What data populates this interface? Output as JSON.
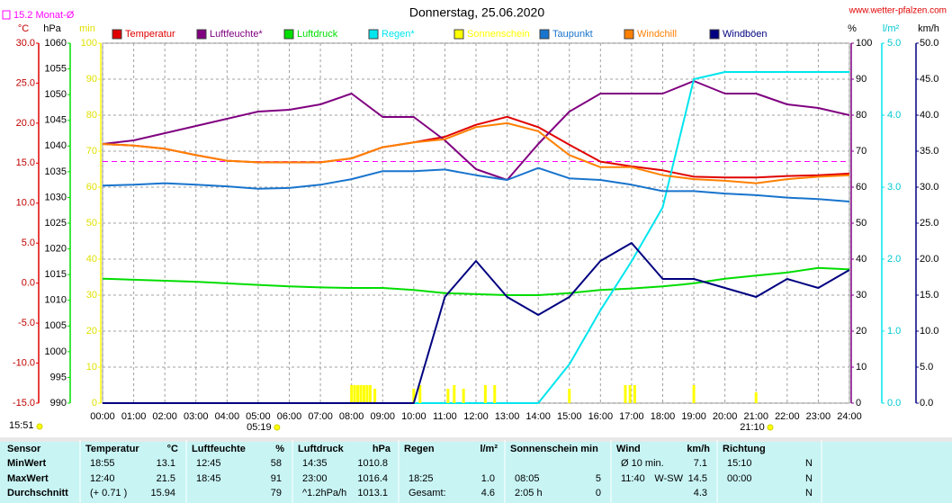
{
  "chart_data": {
    "type": "line",
    "title": "Donnerstag, 25.06.2020",
    "site": "www.wetter-pfalzen.com",
    "current_time": "15:51",
    "sunrise": {
      "label": "05:19",
      "x": 5.3167
    },
    "sunset": {
      "label": "21:10",
      "x": 21.1667
    },
    "monthly_avg": {
      "label": "15.2 Monat-Ø",
      "value": 15.2,
      "color": "#ff00ff"
    },
    "grid": true,
    "xlim": [
      0,
      24
    ],
    "xticks": [
      {
        "value": 0,
        "label": "00:00"
      },
      {
        "value": 1,
        "label": "01:00"
      },
      {
        "value": 2,
        "label": "02:00"
      },
      {
        "value": 3,
        "label": "03:00"
      },
      {
        "value": 4,
        "label": "04:00"
      },
      {
        "value": 5,
        "label": "05:00"
      },
      {
        "value": 6,
        "label": "06:00"
      },
      {
        "value": 7,
        "label": "07:00"
      },
      {
        "value": 8,
        "label": "08:00"
      },
      {
        "value": 9,
        "label": "09:00"
      },
      {
        "value": 10,
        "label": "10:00"
      },
      {
        "value": 11,
        "label": "11:00"
      },
      {
        "value": 12,
        "label": "12:00"
      },
      {
        "value": 13,
        "label": "13:00"
      },
      {
        "value": 14,
        "label": "14:00"
      },
      {
        "value": 15,
        "label": "15:00"
      },
      {
        "value": 16,
        "label": "16:00"
      },
      {
        "value": 17,
        "label": "17:00"
      },
      {
        "value": 18,
        "label": "18:00"
      },
      {
        "value": 19,
        "label": "19:00"
      },
      {
        "value": 20,
        "label": "20:00"
      },
      {
        "value": 21,
        "label": "21:00"
      },
      {
        "value": 22,
        "label": "22:00"
      },
      {
        "value": 23,
        "label": "23:00"
      },
      {
        "value": 24,
        "label": "24:00"
      }
    ],
    "axes": {
      "temp": {
        "label": "°C",
        "side": "left",
        "color": "#e00000",
        "tick_color": "#c00000",
        "lim": [
          -15,
          30
        ],
        "ticks": [
          {
            "value": -15,
            "label": "-15.0"
          },
          {
            "value": -10,
            "label": "-10.0"
          },
          {
            "value": -5,
            "label": "-5.0"
          },
          {
            "value": 0,
            "label": "0.0"
          },
          {
            "value": 5,
            "label": "5.0"
          },
          {
            "value": 10,
            "label": "10.0"
          },
          {
            "value": 15,
            "label": "15.0"
          },
          {
            "value": 20,
            "label": "20.0"
          },
          {
            "value": 25,
            "label": "25.0"
          },
          {
            "value": 30,
            "label": "30.0"
          }
        ]
      },
      "pressure": {
        "label": "hPa",
        "side": "left",
        "color": "#00dd00",
        "tick_color": "#000000",
        "lim": [
          990,
          1060
        ],
        "ticks": [
          990,
          995,
          1000,
          1005,
          1010,
          1015,
          1020,
          1025,
          1030,
          1035,
          1040,
          1045,
          1050,
          1055,
          1060
        ]
      },
      "sun": {
        "label": "min",
        "side": "left",
        "color": "#ffff00",
        "tick_color": "#e0e000",
        "lim": [
          0,
          100
        ],
        "ticks": [
          0,
          10,
          20,
          30,
          40,
          50,
          60,
          70,
          80,
          90,
          100
        ]
      },
      "pct": {
        "label": "%",
        "side": "right",
        "color": "#800080",
        "tick_color": "#000000",
        "lim": [
          0,
          100
        ],
        "ticks": [
          0,
          10,
          20,
          30,
          40,
          50,
          60,
          70,
          80,
          90,
          100
        ]
      },
      "rain": {
        "label": "l/m²",
        "side": "right",
        "color": "#00e5ee",
        "tick_color": "#00c8d0",
        "lim": [
          0,
          5
        ],
        "ticks": [
          {
            "value": 0,
            "label": "0.0"
          },
          {
            "value": 1,
            "label": "1.0"
          },
          {
            "value": 2,
            "label": "2.0"
          },
          {
            "value": 3,
            "label": "3.0"
          },
          {
            "value": 4,
            "label": "4.0"
          },
          {
            "value": 5,
            "label": "5.0"
          }
        ]
      },
      "wind": {
        "label": "km/h",
        "side": "right",
        "color": "#000080",
        "tick_color": "#000000",
        "lim": [
          0,
          50
        ],
        "ticks": [
          {
            "value": 0,
            "label": "0.0"
          },
          {
            "value": 5,
            "label": "5.0"
          },
          {
            "value": 10,
            "label": "10.0"
          },
          {
            "value": 15,
            "label": "15.0"
          },
          {
            "value": 20,
            "label": "20.0"
          },
          {
            "value": 25,
            "label": "25.0"
          },
          {
            "value": 30,
            "label": "30.0"
          },
          {
            "value": 35,
            "label": "35.0"
          },
          {
            "value": 40,
            "label": "40.0"
          },
          {
            "value": 45,
            "label": "45.0"
          },
          {
            "value": 50,
            "label": "50.0"
          }
        ]
      }
    },
    "x": [
      0,
      1,
      2,
      3,
      4,
      5,
      6,
      7,
      8,
      9,
      10,
      11,
      12,
      13,
      14,
      15,
      16,
      17,
      18,
      19,
      20,
      21,
      22,
      23,
      24
    ],
    "series": [
      {
        "name": "Temperatur",
        "color": "#e00000",
        "axis": "temp",
        "values": [
          17.4,
          17.2,
          16.8,
          16.0,
          15.3,
          15.1,
          15.1,
          15.1,
          15.6,
          17.0,
          17.6,
          18.3,
          19.8,
          20.8,
          19.5,
          17.3,
          15.2,
          14.6,
          14.1,
          13.3,
          13.2,
          13.2,
          13.4,
          13.5,
          13.7
        ]
      },
      {
        "name": "Luftfeuchte*",
        "color": "#800080",
        "axis": "pct",
        "values": [
          72,
          73,
          75,
          77,
          79,
          81,
          81.5,
          83,
          86,
          79.5,
          79.5,
          73,
          65,
          62,
          72,
          81,
          86,
          86,
          86,
          89.5,
          86,
          86,
          83,
          82,
          80
        ]
      },
      {
        "name": "Luftdruck",
        "color": "#00dd00",
        "axis": "pressure",
        "values": [
          1014.2,
          1014.0,
          1013.8,
          1013.6,
          1013.3,
          1013.0,
          1012.7,
          1012.5,
          1012.4,
          1012.4,
          1012.0,
          1011.4,
          1011.2,
          1011.0,
          1011.0,
          1011.4,
          1012.0,
          1012.3,
          1012.7,
          1013.3,
          1014.2,
          1014.8,
          1015.4,
          1016.3,
          1016.0
        ]
      },
      {
        "name": "Regen*",
        "color": "#00e5ee",
        "axis": "rain",
        "values": [
          0,
          0,
          0,
          0,
          0,
          0,
          0,
          0,
          0,
          0,
          0,
          0,
          0,
          0,
          0,
          0.54,
          1.29,
          1.97,
          2.72,
          4.5,
          4.6,
          4.6,
          4.6,
          4.6,
          4.6
        ]
      },
      {
        "name": "Sonnenschein",
        "color": "#ffff00",
        "axis": "sun",
        "kind": "bars",
        "x": [
          8.0,
          8.1,
          8.2,
          8.3,
          8.4,
          8.5,
          8.6,
          8.75,
          10.0,
          10.2,
          11.1,
          11.3,
          11.6,
          12.3,
          12.6,
          15.0,
          16.8,
          16.95,
          17.1,
          19.0,
          21.0
        ],
        "values": [
          5,
          5,
          5,
          5,
          5,
          5,
          5,
          4,
          4,
          5,
          4,
          5,
          4,
          5,
          5,
          4,
          5,
          5,
          5,
          5,
          3
        ]
      },
      {
        "name": "Taupunkt",
        "color": "#1874cd",
        "axis": "temp",
        "values": [
          12.2,
          12.3,
          12.5,
          12.3,
          12.1,
          11.8,
          11.9,
          12.3,
          13.0,
          14.0,
          14.0,
          14.2,
          13.5,
          12.9,
          14.4,
          13.1,
          12.9,
          12.3,
          11.5,
          11.5,
          11.2,
          11.0,
          10.7,
          10.5,
          10.2
        ]
      },
      {
        "name": "Windchill",
        "color": "#ff8000",
        "axis": "temp",
        "values": [
          17.4,
          17.2,
          16.8,
          16.0,
          15.3,
          15.1,
          15.1,
          15.1,
          15.6,
          17.0,
          17.6,
          18.0,
          19.5,
          20.0,
          19.0,
          16.0,
          14.5,
          14.5,
          13.5,
          13.0,
          12.8,
          12.5,
          13.0,
          13.3,
          13.5
        ]
      },
      {
        "name": "Windböen",
        "color": "#000080",
        "axis": "wind",
        "values": [
          0,
          0,
          0,
          0,
          0,
          0,
          0,
          0,
          0,
          0,
          0,
          14.75,
          19.75,
          14.75,
          12.25,
          14.75,
          19.75,
          22.25,
          17.25,
          17.25,
          16,
          14.75,
          17.25,
          16,
          18.5
        ]
      }
    ]
  },
  "table": {
    "columns": [
      {
        "title": "Sensor"
      },
      {
        "title": "Temperatur",
        "unit": "°C"
      },
      {
        "title": "Luftfeuchte",
        "unit": "%"
      },
      {
        "title": "Luftdruck",
        "unit": "hPa"
      },
      {
        "title": "Regen",
        "unit": "l/m²"
      },
      {
        "title": "Sonnenschein min"
      },
      {
        "title": "Wind",
        "unit": "km/h"
      },
      {
        "title": "Richtung"
      }
    ],
    "rows": [
      {
        "label": "MinWert",
        "cells": [
          {
            "a": "18:55",
            "v": "13.1"
          },
          {
            "a": "12:45",
            "v": "58"
          },
          {
            "a": "14:35",
            "v": "1010.8"
          },
          {},
          {},
          {
            "a": "Ø 10 min.",
            "v": "7.1"
          },
          {
            "a": "15:10",
            "v": "N"
          }
        ]
      },
      {
        "label": "MaxWert",
        "cells": [
          {
            "a": "12:40",
            "v": "21.5"
          },
          {
            "a": "18:45",
            "v": "91"
          },
          {
            "a": "23:00",
            "v": "1016.4"
          },
          {
            "a": "18:25",
            "v": "1.0"
          },
          {
            "a": "08:05",
            "v": "5"
          },
          {
            "a": "11:40",
            "m": "W-SW",
            "v": "14.5"
          },
          {
            "a": "00:00",
            "v": "N"
          }
        ]
      },
      {
        "label": "Durchschnitt",
        "cells": [
          {
            "a": "(+ 0.71 )",
            "v": "15.94"
          },
          {
            "v": "79"
          },
          {
            "a": "^1.2hPa/h",
            "v": "1013.1"
          },
          {
            "a": "Gesamt:",
            "v": "4.6"
          },
          {
            "a": "2:05 h",
            "v": "0"
          },
          {
            "v": "4.3"
          },
          {
            "v": "N"
          }
        ]
      }
    ]
  }
}
